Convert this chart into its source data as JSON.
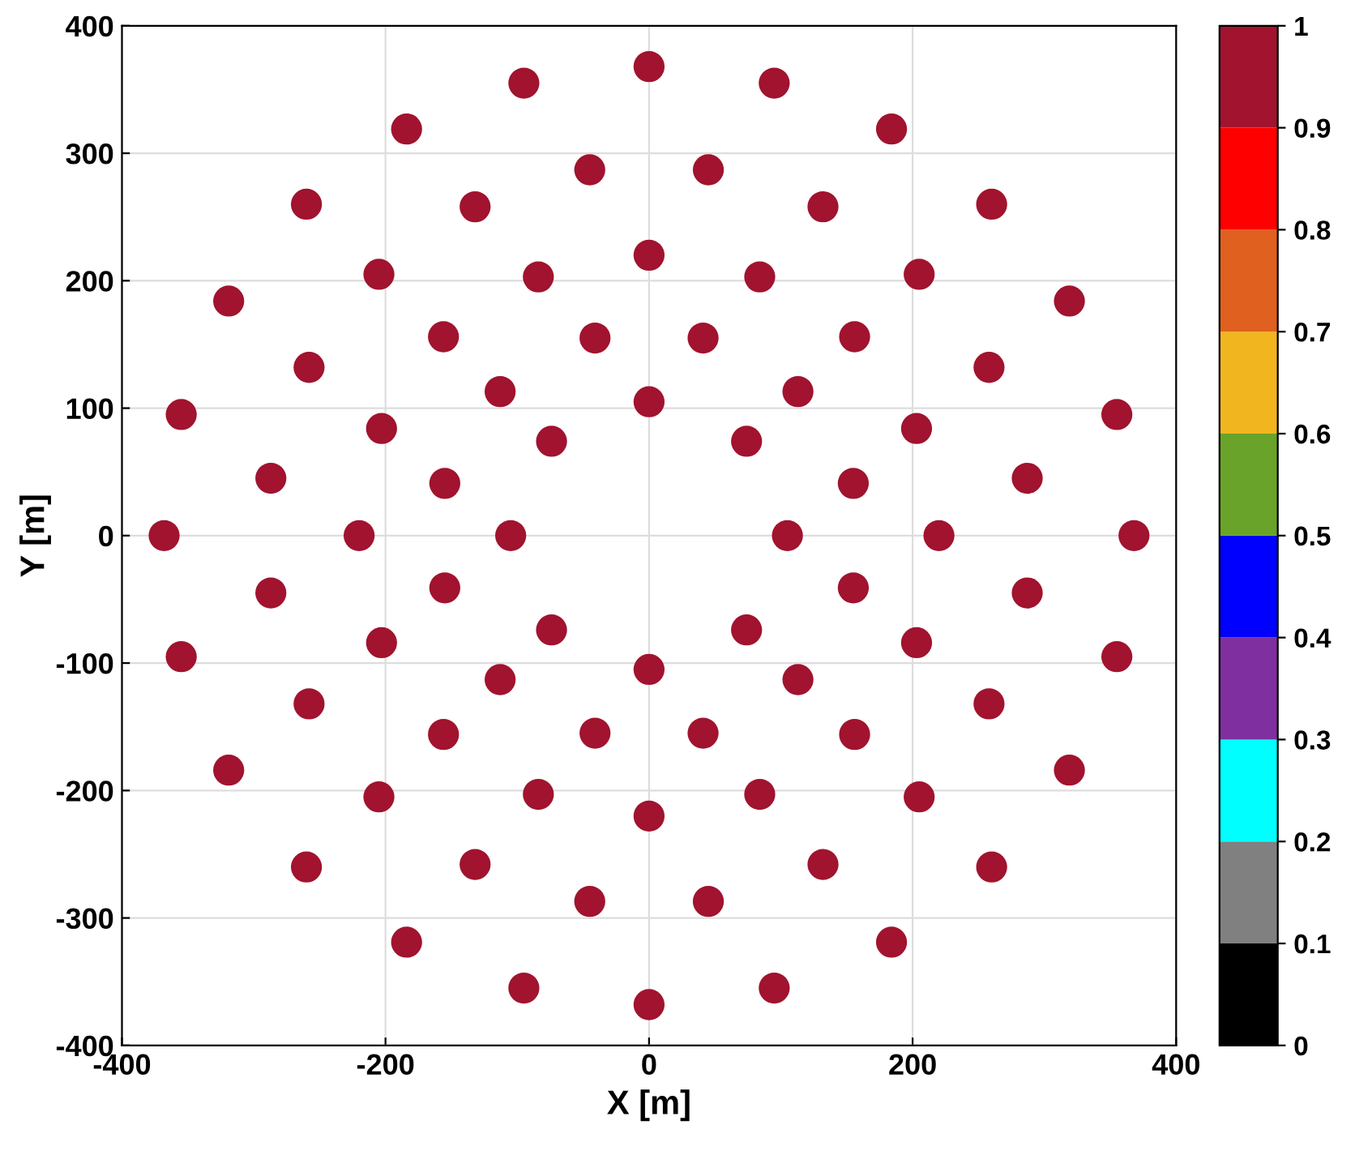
{
  "chart_data": {
    "type": "scatter",
    "xlabel": "X [m]",
    "ylabel": "Y [m]",
    "x": [
      368,
      355,
      319,
      260,
      184,
      95,
      0,
      -95,
      -184,
      -260,
      -319,
      -355,
      -368,
      -355,
      -319,
      -260,
      -184,
      -95,
      0,
      95,
      184,
      260,
      319,
      355,
      287,
      258,
      205,
      132,
      45,
      -45,
      -132,
      -205,
      -258,
      -287,
      -287,
      -258,
      -205,
      -132,
      -45,
      45,
      132,
      205,
      258,
      287,
      220,
      203,
      156,
      84,
      0,
      -84,
      -156,
      -203,
      -220,
      -203,
      -156,
      -84,
      0,
      84,
      156,
      203,
      155,
      113,
      41,
      -41,
      -113,
      -155,
      -155,
      -113,
      -41,
      41,
      113,
      155,
      105,
      74,
      0,
      -74,
      -105,
      -74,
      0,
      74
    ],
    "values": [
      0,
      95,
      184,
      260,
      319,
      355,
      368,
      355,
      319,
      260,
      184,
      95,
      0,
      -95,
      -184,
      -260,
      -319,
      -355,
      -368,
      -355,
      -319,
      -260,
      -184,
      -95,
      45,
      132,
      205,
      258,
      287,
      287,
      258,
      205,
      132,
      45,
      -45,
      -132,
      -205,
      -258,
      -287,
      -287,
      -258,
      -205,
      -132,
      -45,
      0,
      84,
      156,
      203,
      220,
      203,
      156,
      84,
      0,
      -84,
      -156,
      -203,
      -220,
      -203,
      -156,
      -84,
      41,
      113,
      155,
      155,
      113,
      41,
      -41,
      -113,
      -155,
      -155,
      -113,
      -41,
      0,
      74,
      105,
      74,
      0,
      -74,
      -105,
      -74
    ],
    "cvalues": [
      1,
      1,
      1,
      1,
      1,
      1,
      1,
      1,
      1,
      1,
      1,
      1,
      1,
      1,
      1,
      1,
      1,
      1,
      1,
      1,
      1,
      1,
      1,
      1,
      1,
      1,
      1,
      1,
      1,
      1,
      1,
      1,
      1,
      1,
      1,
      1,
      1,
      1,
      1,
      1,
      1,
      1,
      1,
      1,
      1,
      1,
      1,
      1,
      1,
      1,
      1,
      1,
      1,
      1,
      1,
      1,
      1,
      1,
      1,
      1,
      1,
      1,
      1,
      1,
      1,
      1,
      1,
      1,
      1,
      1,
      1,
      1,
      1,
      1,
      1,
      1,
      1,
      1,
      1,
      1
    ],
    "marker": "circle",
    "xlim": [
      -400,
      400
    ],
    "ylim": [
      -400,
      400
    ],
    "xticks": [
      -400,
      -200,
      0,
      200,
      400
    ],
    "yticks": [
      -400,
      -300,
      -200,
      -100,
      0,
      100,
      200,
      300,
      400
    ],
    "clim": [
      0,
      1
    ],
    "cticks": [
      0,
      0.1,
      0.2,
      0.3,
      0.4,
      0.5,
      0.6,
      0.7,
      0.8,
      0.9,
      1
    ],
    "grid": true
  }
}
